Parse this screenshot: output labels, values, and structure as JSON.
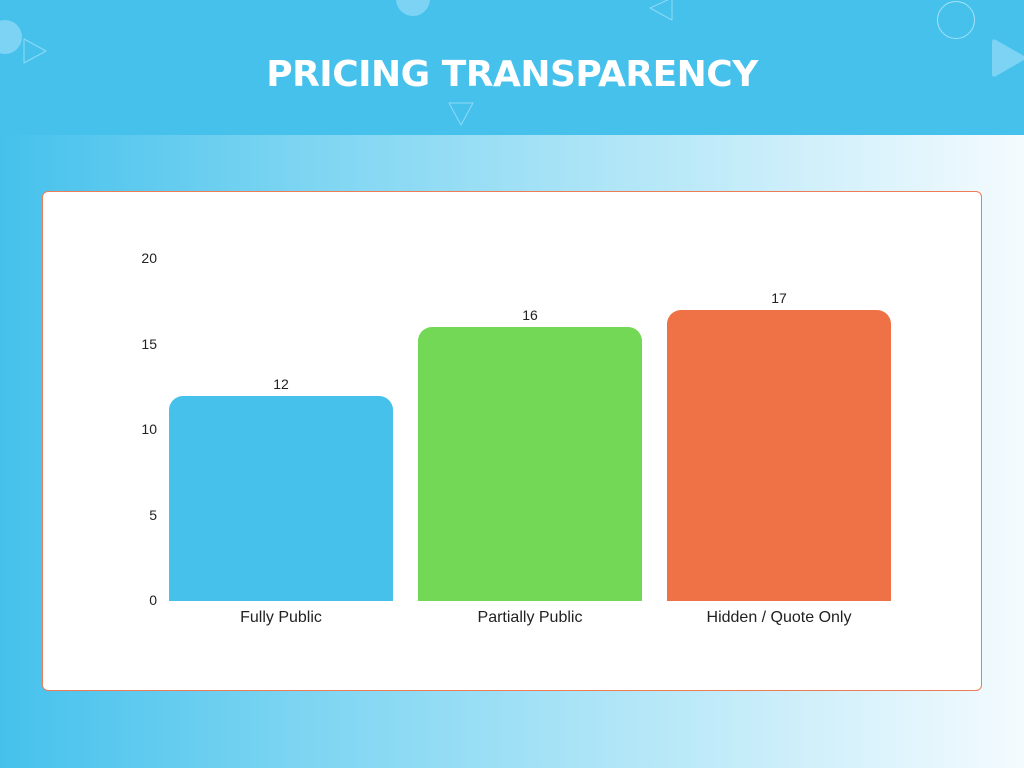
{
  "header": {
    "title": "PRICING TRANSPARENCY",
    "background": "#45c1ec"
  },
  "chart_data": {
    "type": "bar",
    "title": "PRICING TRANSPARENCY",
    "categories": [
      "Fully Public",
      "Partially Public",
      "Hidden / Quote Only"
    ],
    "values": [
      12,
      16,
      17
    ],
    "value_labels": [
      "12",
      "16",
      "17"
    ],
    "colors": [
      "#45c1ec",
      "#72d855",
      "#ee7246"
    ],
    "xlabel": "",
    "ylabel": "",
    "ylim": [
      0,
      20
    ],
    "yticks": [
      0,
      5,
      10,
      15,
      20
    ],
    "ytick_labels": [
      "0",
      "5",
      "10",
      "15",
      "20"
    ],
    "grid": false,
    "legend": "none"
  }
}
